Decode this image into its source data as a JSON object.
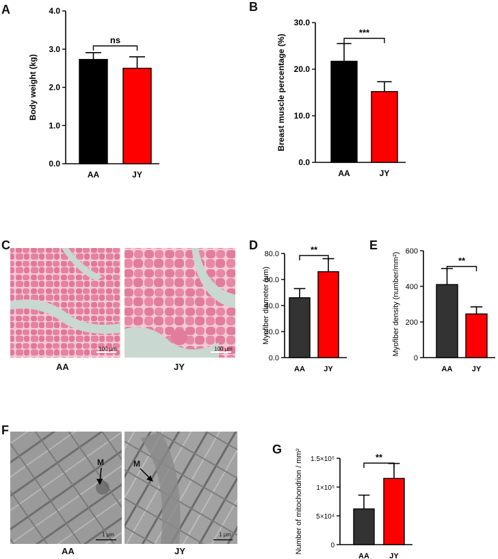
{
  "panels": {
    "A": "A",
    "B": "B",
    "C": "C",
    "D": "D",
    "E": "E",
    "F": "F",
    "G": "G"
  },
  "images": {
    "histology": {
      "left_label": "AA",
      "right_label": "JY",
      "left_scale": "100 μm",
      "right_scale": "100 μm",
      "colors": {
        "stain": "#e07a9b",
        "background": "#c8d6cf"
      }
    },
    "tem": {
      "left_label": "AA",
      "right_label": "JY",
      "left_scale": "1 μm",
      "right_scale": "1 μm",
      "left_marker": "M",
      "right_marker": "M"
    }
  },
  "chart_data": [
    {
      "panel": "A",
      "type": "bar",
      "categories": [
        "AA",
        "JY"
      ],
      "values": [
        2.73,
        2.5
      ],
      "errors": [
        0.18,
        0.3
      ],
      "colors": [
        "#000000",
        "#ff0000"
      ],
      "ylabel": "Body weight (kg)",
      "ylim": [
        0,
        4
      ],
      "ticks": [
        "0.0",
        "1.0",
        "2.0",
        "3.0",
        "4.0"
      ],
      "significance": "ns"
    },
    {
      "panel": "B",
      "type": "bar",
      "categories": [
        "AA",
        "JY"
      ],
      "values": [
        21.7,
        15.2
      ],
      "errors": [
        3.8,
        2.1
      ],
      "colors": [
        "#000000",
        "#ff0000"
      ],
      "ylabel": "Breast muscle percentage (%)",
      "ylim": [
        0,
        30
      ],
      "ticks": [
        "0.0",
        "10.0",
        "20.0",
        "30.0"
      ],
      "significance": "***"
    },
    {
      "panel": "D",
      "type": "bar",
      "categories": [
        "AA",
        "JY"
      ],
      "values": [
        46,
        66
      ],
      "errors": [
        7,
        10
      ],
      "colors": [
        "#333333",
        "#ff0000"
      ],
      "ylabel": "Myofiber diameter (μm)",
      "ylim": [
        0,
        80
      ],
      "ticks": [
        "0.0",
        "20.0",
        "40.0",
        "60.0",
        "80.0"
      ],
      "significance": "**"
    },
    {
      "panel": "E",
      "type": "bar",
      "categories": [
        "AA",
        "JY"
      ],
      "values": [
        410,
        245
      ],
      "errors": [
        90,
        40
      ],
      "colors": [
        "#333333",
        "#ff0000"
      ],
      "ylabel": "Myofiber density (number/mm²)",
      "ylim": [
        0,
        600
      ],
      "ticks": [
        "0",
        "200",
        "400",
        "600"
      ],
      "significance": "**"
    },
    {
      "panel": "G",
      "type": "bar",
      "categories": [
        "AA",
        "JY"
      ],
      "values": [
        62000,
        115000
      ],
      "errors": [
        24000,
        26000
      ],
      "colors": [
        "#333333",
        "#ff0000"
      ],
      "ylabel": "Number of mitochondrion / mm²",
      "ylim": [
        0,
        150000
      ],
      "ticks": [
        "0",
        "5×10⁴",
        "1×10⁵",
        "1.5×10⁵"
      ],
      "significance": "**"
    }
  ]
}
